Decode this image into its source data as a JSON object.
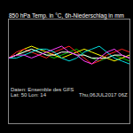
{
  "chart_data": {
    "type": "line",
    "title": "850 hPa Temp. in °C, 6h-Niederschlag in mm",
    "annotations": [
      "Lat: 50 Lon: 14",
      "Thu,06JUL2017 06Z",
      "Daten: Ensemble des GFS"
    ],
    "x": [
      0,
      24,
      48,
      72,
      96,
      120,
      144,
      168,
      192,
      216,
      240,
      264,
      288,
      312,
      336,
      360,
      384
    ],
    "xlim": [
      0,
      384
    ],
    "ylim": [
      -10,
      25
    ],
    "grid": false,
    "tick_labels": false,
    "series": [
      {
        "color": "#00c000",
        "values": [
          12,
          13,
          14,
          15,
          14,
          13,
          12,
          13,
          14,
          15,
          13,
          12,
          11,
          12,
          13,
          12,
          11
        ]
      },
      {
        "color": "#ffff00",
        "values": [
          12,
          13,
          15,
          16,
          15,
          14,
          13,
          12,
          13,
          14,
          15,
          14,
          13,
          12,
          11,
          12,
          13
        ]
      },
      {
        "color": "#ff2020",
        "values": [
          12,
          14,
          15,
          14,
          13,
          12,
          14,
          15,
          16,
          14,
          12,
          10,
          11,
          13,
          14,
          15,
          14
        ]
      },
      {
        "color": "#ffffff",
        "values": [
          12,
          13,
          14,
          15,
          14,
          13,
          13,
          14,
          14,
          13,
          13,
          12,
          12,
          12,
          13,
          13,
          12
        ]
      },
      {
        "color": "#00e0e0",
        "values": [
          12,
          12,
          13,
          14,
          15,
          15,
          14,
          12,
          11,
          12,
          14,
          15,
          16,
          14,
          12,
          11,
          10
        ]
      },
      {
        "color": "#ff40ff",
        "values": [
          12,
          13,
          13,
          12,
          13,
          14,
          15,
          16,
          14,
          13,
          11,
          10,
          12,
          14,
          15,
          13,
          12
        ]
      }
    ]
  }
}
